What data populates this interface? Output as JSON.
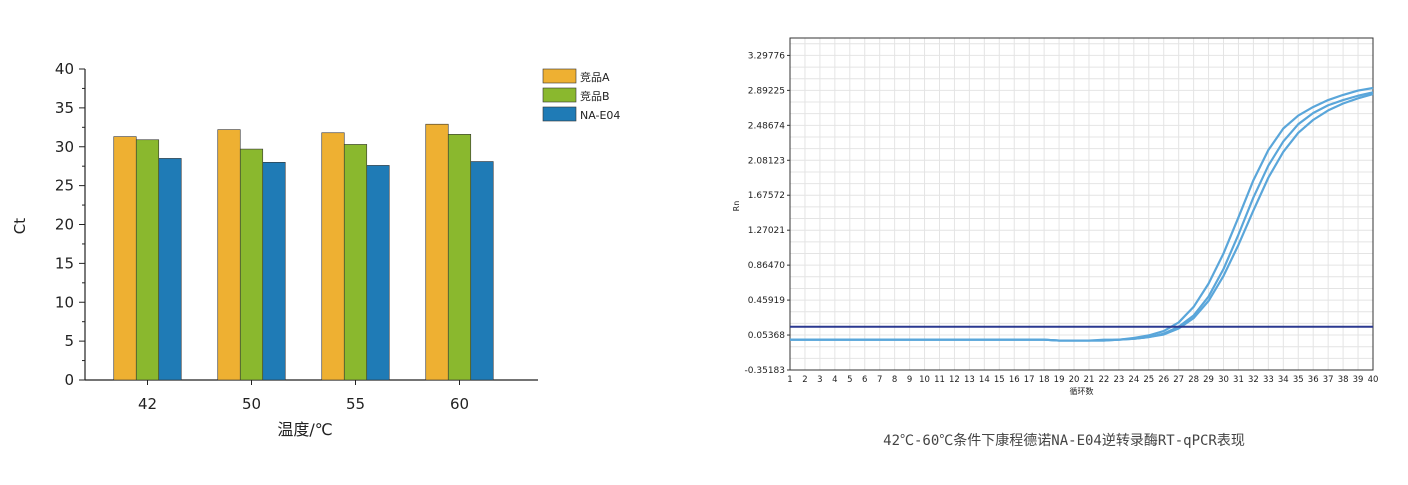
{
  "caption": "42℃-60℃条件下康程德诺NA-E04逆转录酶RT-qPCR表现",
  "colors": {
    "series_a": "#EEB032",
    "series_b": "#8AB82E",
    "series_c": "#1F7BB6",
    "amp_curve": "#5AA6DA",
    "threshold": "#2B3990"
  },
  "chart_data": [
    {
      "type": "bar",
      "xlabel": "温度/℃",
      "ylabel": "Ct",
      "ylim": [
        0,
        40
      ],
      "yticks": [
        "0",
        "5",
        "10",
        "15",
        "20",
        "25",
        "30",
        "35",
        "40"
      ],
      "categories": [
        "42",
        "50",
        "55",
        "60"
      ],
      "legend_position": "top-right",
      "series": [
        {
          "name": "竞品A",
          "values": [
            31.3,
            32.2,
            31.8,
            32.9
          ]
        },
        {
          "name": "竞品B",
          "values": [
            30.9,
            29.7,
            30.3,
            31.6
          ]
        },
        {
          "name": "NA-E04",
          "values": [
            28.5,
            28.0,
            27.6,
            28.1
          ]
        }
      ]
    },
    {
      "type": "line",
      "xlabel": "循环数",
      "ylabel": "Rn",
      "xlim": [
        1,
        40
      ],
      "ylim": [
        -0.35183,
        3.5
      ],
      "grid": true,
      "xticks": [
        "1",
        "2",
        "3",
        "4",
        "5",
        "6",
        "7",
        "8",
        "9",
        "10",
        "11",
        "12",
        "13",
        "14",
        "15",
        "16",
        "17",
        "18",
        "19",
        "20",
        "21",
        "22",
        "23",
        "24",
        "25",
        "26",
        "27",
        "28",
        "29",
        "30",
        "31",
        "32",
        "33",
        "34",
        "35",
        "36",
        "37",
        "38",
        "39",
        "40"
      ],
      "yticks": [
        "-0.35183",
        "0.05368",
        "0.45919",
        "0.86470",
        "1.27021",
        "1.67572",
        "2.08123",
        "2.48674",
        "2.89225",
        "3.29776"
      ],
      "threshold": 0.15,
      "series": [
        {
          "x": [
            1,
            2,
            3,
            4,
            5,
            6,
            7,
            8,
            9,
            10,
            11,
            12,
            13,
            14,
            15,
            16,
            17,
            18,
            19,
            20,
            21,
            22,
            23,
            24,
            25,
            26,
            27,
            28,
            29,
            30,
            31,
            32,
            33,
            34,
            35,
            36,
            37,
            38,
            39,
            40
          ],
          "y": [
            0.0,
            0.0,
            0.0,
            0.0,
            0.0,
            0.0,
            0.0,
            0.0,
            0.0,
            0.0,
            0.0,
            0.0,
            0.0,
            0.0,
            0.0,
            0.0,
            0.0,
            0.0,
            -0.01,
            -0.01,
            -0.01,
            0.0,
            0.0,
            0.02,
            0.05,
            0.1,
            0.2,
            0.38,
            0.65,
            1.0,
            1.42,
            1.85,
            2.2,
            2.45,
            2.6,
            2.7,
            2.78,
            2.84,
            2.89,
            2.92
          ]
        },
        {
          "x": [
            1,
            2,
            3,
            4,
            5,
            6,
            7,
            8,
            9,
            10,
            11,
            12,
            13,
            14,
            15,
            16,
            17,
            18,
            19,
            20,
            21,
            22,
            23,
            24,
            25,
            26,
            27,
            28,
            29,
            30,
            31,
            32,
            33,
            34,
            35,
            36,
            37,
            38,
            39,
            40
          ],
          "y": [
            0.0,
            0.0,
            0.0,
            0.0,
            0.0,
            0.0,
            0.0,
            0.0,
            0.0,
            0.0,
            0.0,
            0.0,
            0.0,
            0.0,
            0.0,
            0.0,
            0.0,
            0.0,
            -0.01,
            -0.01,
            -0.01,
            -0.01,
            0.0,
            0.01,
            0.03,
            0.07,
            0.15,
            0.28,
            0.5,
            0.82,
            1.22,
            1.65,
            2.02,
            2.3,
            2.5,
            2.63,
            2.72,
            2.78,
            2.83,
            2.87
          ]
        },
        {
          "x": [
            1,
            2,
            3,
            4,
            5,
            6,
            7,
            8,
            9,
            10,
            11,
            12,
            13,
            14,
            15,
            16,
            17,
            18,
            19,
            20,
            21,
            22,
            23,
            24,
            25,
            26,
            27,
            28,
            29,
            30,
            31,
            32,
            33,
            34,
            35,
            36,
            37,
            38,
            39,
            40
          ],
          "y": [
            0.0,
            0.0,
            0.0,
            0.0,
            0.0,
            0.0,
            0.0,
            0.0,
            0.0,
            0.0,
            0.0,
            0.0,
            0.0,
            0.0,
            0.0,
            0.0,
            0.0,
            0.0,
            -0.01,
            -0.01,
            -0.01,
            -0.01,
            0.0,
            0.01,
            0.03,
            0.06,
            0.13,
            0.25,
            0.45,
            0.74,
            1.1,
            1.5,
            1.88,
            2.18,
            2.4,
            2.55,
            2.66,
            2.74,
            2.8,
            2.85
          ]
        }
      ]
    }
  ]
}
